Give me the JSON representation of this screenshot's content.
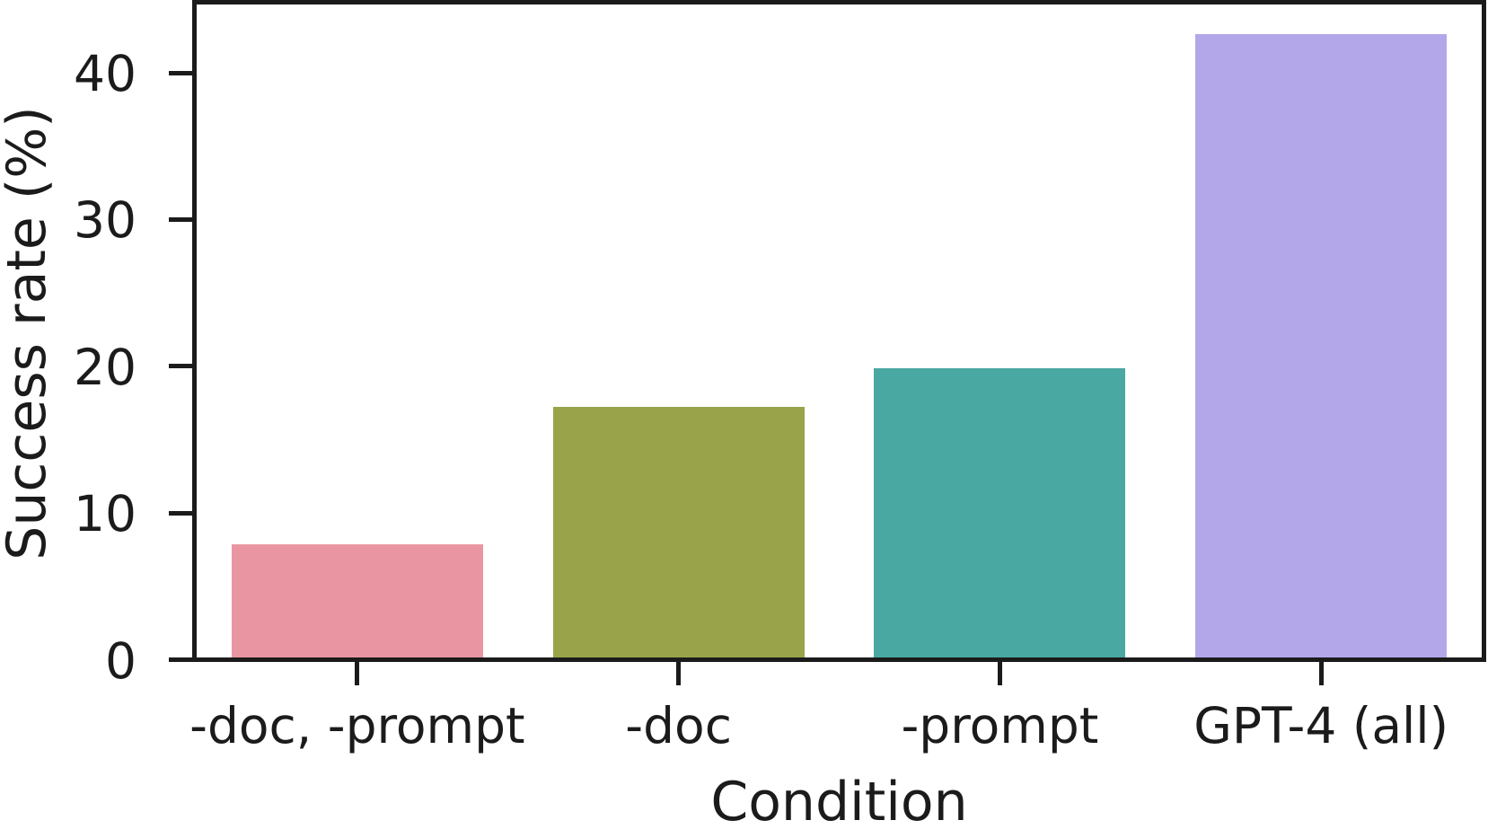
{
  "chart_data": {
    "type": "bar",
    "xlabel": "Condition",
    "ylabel": "Success rate (%)",
    "categories": [
      "-doc, -prompt",
      "-doc",
      "-prompt",
      "GPT-4 (all)"
    ],
    "values": [
      7.7,
      17.1,
      19.7,
      42.5
    ],
    "bar_colors": [
      "#ea96a2",
      "#99a34a",
      "#4aa8a2",
      "#b4a7e9"
    ],
    "yticks": [
      0,
      10,
      20,
      30,
      40
    ],
    "ylim": [
      0,
      44.5
    ],
    "grid": false,
    "legend_position": "none",
    "frame": true,
    "axis_color": "#1b1b1b",
    "text_color": "#1b1b1b",
    "background_color": "#ffffff"
  }
}
